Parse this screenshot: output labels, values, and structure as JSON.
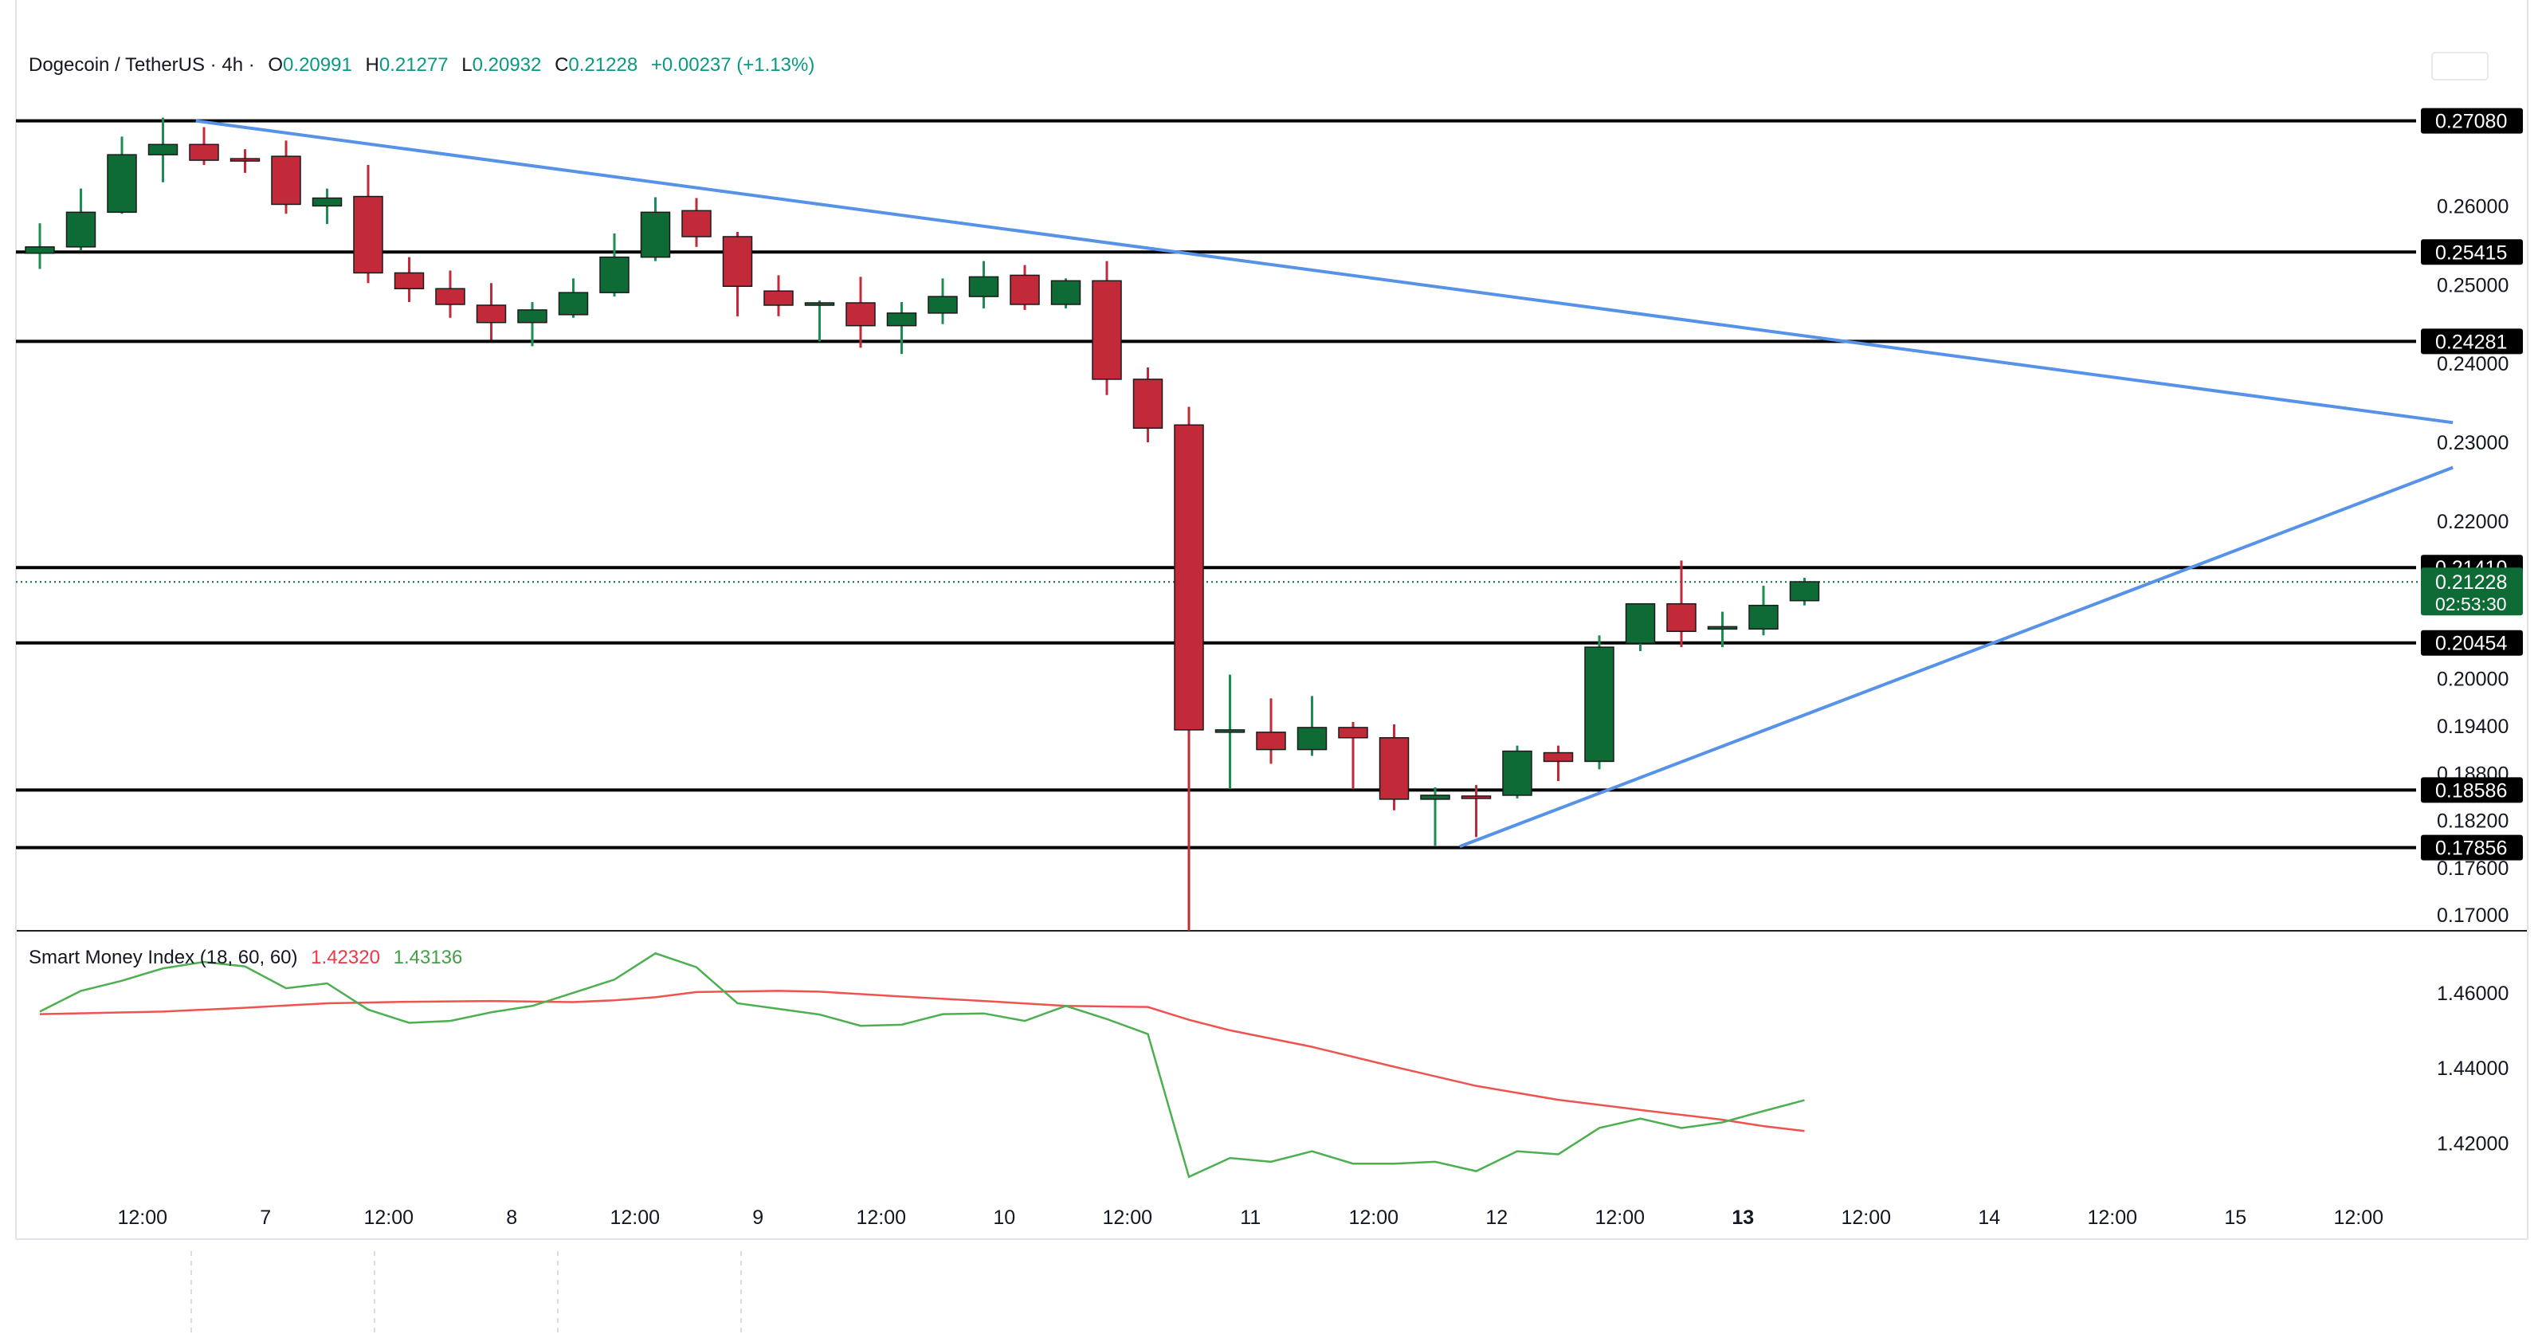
{
  "header": {
    "symbol": "Dogecoin / TetherUS · 4h ·",
    "o_label": "O",
    "o_value": "0.20991",
    "h_label": "H",
    "h_value": "0.21277",
    "l_label": "L",
    "l_value": "0.20932",
    "c_label": "C",
    "c_value": "0.21228",
    "change": "+0.00237 (+1.13%)"
  },
  "indicator": {
    "name": "Smart Money Index (18, 60, 60)",
    "value_red": "1.42320",
    "value_green": "1.43136"
  },
  "colors": {
    "up": "#0f6b35",
    "down": "#c22a3a",
    "trendline": "#5592e8",
    "level": "#000000",
    "smi_green": "#4caf50",
    "smi_red": "#ef5350",
    "axis_text": "#131722",
    "value_green": "#089981",
    "value_red": "#f23645"
  },
  "chart_data": [
    {
      "type": "candlestick",
      "title": "Dogecoin / TetherUS · 4h",
      "y_ticks": [
        "0.26000",
        "0.25000",
        "0.24000",
        "0.23000",
        "0.22000",
        "0.20000",
        "0.19400",
        "0.18800",
        "0.18200",
        "0.17600",
        "0.17000"
      ],
      "ylim": [
        0.168,
        0.274
      ],
      "x_ticks": [
        {
          "label": "12:00",
          "index": 2.5,
          "bold": false
        },
        {
          "label": "7",
          "index": 5.5,
          "bold": false
        },
        {
          "label": "12:00",
          "index": 8.5,
          "bold": false
        },
        {
          "label": "8",
          "index": 11.5,
          "bold": false
        },
        {
          "label": "12:00",
          "index": 14.5,
          "bold": false
        },
        {
          "label": "9",
          "index": 17.5,
          "bold": false
        },
        {
          "label": "12:00",
          "index": 20.5,
          "bold": false
        },
        {
          "label": "10",
          "index": 23.5,
          "bold": false
        },
        {
          "label": "12:00",
          "index": 26.5,
          "bold": false
        },
        {
          "label": "11",
          "index": 29.5,
          "bold": false
        },
        {
          "label": "12:00",
          "index": 32.5,
          "bold": false
        },
        {
          "label": "12",
          "index": 35.5,
          "bold": false
        },
        {
          "label": "12:00",
          "index": 38.5,
          "bold": false
        },
        {
          "label": "13",
          "index": 41.5,
          "bold": true
        },
        {
          "label": "12:00",
          "index": 44.5,
          "bold": false
        },
        {
          "label": "14",
          "index": 47.5,
          "bold": false
        },
        {
          "label": "12:00",
          "index": 50.5,
          "bold": false
        },
        {
          "label": "15",
          "index": 53.5,
          "bold": false
        },
        {
          "label": "12:00",
          "index": 56.5,
          "bold": false
        }
      ],
      "candles": [
        {
          "o": 0.254,
          "h": 0.2578,
          "l": 0.252,
          "c": 0.2548
        },
        {
          "o": 0.2548,
          "h": 0.2622,
          "l": 0.2543,
          "c": 0.2592
        },
        {
          "o": 0.2592,
          "h": 0.2688,
          "l": 0.259,
          "c": 0.2665
        },
        {
          "o": 0.2665,
          "h": 0.2712,
          "l": 0.263,
          "c": 0.2678
        },
        {
          "o": 0.2678,
          "h": 0.27,
          "l": 0.2652,
          "c": 0.2658
        },
        {
          "o": 0.266,
          "h": 0.2672,
          "l": 0.2642,
          "c": 0.2657
        },
        {
          "o": 0.2663,
          "h": 0.2683,
          "l": 0.259,
          "c": 0.2602
        },
        {
          "o": 0.26,
          "h": 0.2622,
          "l": 0.2577,
          "c": 0.261
        },
        {
          "o": 0.2612,
          "h": 0.2652,
          "l": 0.2502,
          "c": 0.2515
        },
        {
          "o": 0.2515,
          "h": 0.2535,
          "l": 0.2478,
          "c": 0.2495
        },
        {
          "o": 0.2495,
          "h": 0.2518,
          "l": 0.2458,
          "c": 0.2475
        },
        {
          "o": 0.2474,
          "h": 0.2502,
          "l": 0.243,
          "c": 0.2452
        },
        {
          "o": 0.2452,
          "h": 0.2478,
          "l": 0.2422,
          "c": 0.2468
        },
        {
          "o": 0.2462,
          "h": 0.2508,
          "l": 0.2458,
          "c": 0.249
        },
        {
          "o": 0.249,
          "h": 0.2565,
          "l": 0.2485,
          "c": 0.2535
        },
        {
          "o": 0.2535,
          "h": 0.2611,
          "l": 0.253,
          "c": 0.2592
        },
        {
          "o": 0.2594,
          "h": 0.261,
          "l": 0.2548,
          "c": 0.2561
        },
        {
          "o": 0.2561,
          "h": 0.2567,
          "l": 0.246,
          "c": 0.2498
        },
        {
          "o": 0.2492,
          "h": 0.2512,
          "l": 0.246,
          "c": 0.2474
        },
        {
          "o": 0.2476,
          "h": 0.248,
          "l": 0.2428,
          "c": 0.2477
        },
        {
          "o": 0.2477,
          "h": 0.251,
          "l": 0.242,
          "c": 0.2448
        },
        {
          "o": 0.2448,
          "h": 0.2478,
          "l": 0.2412,
          "c": 0.2464
        },
        {
          "o": 0.2464,
          "h": 0.2508,
          "l": 0.245,
          "c": 0.2485
        },
        {
          "o": 0.2485,
          "h": 0.253,
          "l": 0.247,
          "c": 0.251
        },
        {
          "o": 0.2512,
          "h": 0.2525,
          "l": 0.2468,
          "c": 0.2475
        },
        {
          "o": 0.2475,
          "h": 0.2508,
          "l": 0.247,
          "c": 0.2505
        },
        {
          "o": 0.2505,
          "h": 0.253,
          "l": 0.236,
          "c": 0.238
        },
        {
          "o": 0.238,
          "h": 0.2395,
          "l": 0.23,
          "c": 0.2318
        },
        {
          "o": 0.2322,
          "h": 0.2345,
          "l": 0.168,
          "c": 0.1935
        },
        {
          "o": 0.1935,
          "h": 0.2005,
          "l": 0.186,
          "c": 0.1935
        },
        {
          "o": 0.1932,
          "h": 0.1975,
          "l": 0.1892,
          "c": 0.191
        },
        {
          "o": 0.191,
          "h": 0.1978,
          "l": 0.1902,
          "c": 0.1938
        },
        {
          "o": 0.1938,
          "h": 0.1945,
          "l": 0.186,
          "c": 0.1925
        },
        {
          "o": 0.1925,
          "h": 0.1942,
          "l": 0.1833,
          "c": 0.1847
        },
        {
          "o": 0.1847,
          "h": 0.1862,
          "l": 0.1788,
          "c": 0.1852
        },
        {
          "o": 0.1851,
          "h": 0.1865,
          "l": 0.1799,
          "c": 0.185
        },
        {
          "o": 0.1852,
          "h": 0.1915,
          "l": 0.1848,
          "c": 0.1908
        },
        {
          "o": 0.1906,
          "h": 0.1915,
          "l": 0.187,
          "c": 0.1895
        },
        {
          "o": 0.1895,
          "h": 0.2055,
          "l": 0.1885,
          "c": 0.204
        },
        {
          "o": 0.2045,
          "h": 0.2095,
          "l": 0.2035,
          "c": 0.2095
        },
        {
          "o": 0.2095,
          "h": 0.215,
          "l": 0.204,
          "c": 0.206
        },
        {
          "o": 0.2065,
          "h": 0.2085,
          "l": 0.204,
          "c": 0.2066
        },
        {
          "o": 0.2063,
          "h": 0.2118,
          "l": 0.2055,
          "c": 0.2093
        },
        {
          "o": 0.2099,
          "h": 0.2128,
          "l": 0.2093,
          "c": 0.2123
        }
      ],
      "horizontal_levels": [
        "0.27080",
        "0.25415",
        "0.24281",
        "0.21410",
        "0.20454",
        "0.18586",
        "0.17856"
      ],
      "current_price": {
        "value": "0.21228",
        "countdown": "02:53:30"
      },
      "trendlines": [
        {
          "name": "descending-resistance",
          "from": {
            "index": 3.8,
            "value": 0.2708
          },
          "to": {
            "index": 58.8,
            "value": 0.2325
          }
        },
        {
          "name": "ascending-support",
          "from": {
            "index": 34.6,
            "value": 0.1787
          },
          "to": {
            "index": 58.8,
            "value": 0.2268
          }
        }
      ]
    },
    {
      "type": "line",
      "title": "Smart Money Index (18, 60, 60)",
      "y_ticks": [
        "1.46000",
        "1.44000",
        "1.42000"
      ],
      "ylim": [
        1.405,
        1.4765
      ],
      "series": [
        {
          "name": "smi_red",
          "color": "#ef5350",
          "points": [
            [
              0,
              1.4543
            ],
            [
              3,
              1.455
            ],
            [
              5,
              1.456
            ],
            [
              7,
              1.4572
            ],
            [
              9,
              1.4576
            ],
            [
              11,
              1.4578
            ],
            [
              13,
              1.4575
            ],
            [
              14,
              1.458
            ],
            [
              15,
              1.4588
            ],
            [
              16,
              1.4602
            ],
            [
              18,
              1.4605
            ],
            [
              19,
              1.4603
            ],
            [
              21,
              1.459
            ],
            [
              23,
              1.4578
            ],
            [
              25,
              1.4565
            ],
            [
              27,
              1.4562
            ],
            [
              28,
              1.4528
            ],
            [
              29,
              1.45
            ],
            [
              31,
              1.4456
            ],
            [
              33,
              1.4403
            ],
            [
              35,
              1.4352
            ],
            [
              37,
              1.4315
            ],
            [
              39,
              1.4288
            ],
            [
              41,
              1.4262
            ],
            [
              42,
              1.4245
            ],
            [
              43,
              1.4232
            ]
          ]
        },
        {
          "name": "smi_green",
          "color": "#4caf50",
          "points": [
            [
              0,
              1.455
            ],
            [
              1,
              1.4605
            ],
            [
              2,
              1.4632
            ],
            [
              3,
              1.4665
            ],
            [
              4,
              1.4682
            ],
            [
              5,
              1.467
            ],
            [
              6,
              1.4612
            ],
            [
              7,
              1.4625
            ],
            [
              8,
              1.4555
            ],
            [
              9,
              1.452
            ],
            [
              10,
              1.4525
            ],
            [
              11,
              1.4548
            ],
            [
              12,
              1.4565
            ],
            [
              13,
              1.46
            ],
            [
              14,
              1.4635
            ],
            [
              15,
              1.4705
            ],
            [
              16,
              1.4668
            ],
            [
              17,
              1.4572
            ],
            [
              18,
              1.4557
            ],
            [
              19,
              1.4542
            ],
            [
              20,
              1.4512
            ],
            [
              21,
              1.4515
            ],
            [
              22,
              1.4543
            ],
            [
              23,
              1.4545
            ],
            [
              24,
              1.4525
            ],
            [
              25,
              1.4565
            ],
            [
              26,
              1.453
            ],
            [
              27,
              1.449
            ],
            [
              28,
              1.411
            ],
            [
              29,
              1.416
            ],
            [
              30,
              1.415
            ],
            [
              31,
              1.4178
            ],
            [
              32,
              1.4145
            ],
            [
              33,
              1.4145
            ],
            [
              34,
              1.415
            ],
            [
              35,
              1.4125
            ],
            [
              36,
              1.4178
            ],
            [
              37,
              1.417
            ],
            [
              38,
              1.424
            ],
            [
              39,
              1.4265
            ],
            [
              40,
              1.424
            ],
            [
              41,
              1.4255
            ],
            [
              42,
              1.4285
            ],
            [
              43,
              1.4314
            ]
          ]
        }
      ]
    }
  ]
}
